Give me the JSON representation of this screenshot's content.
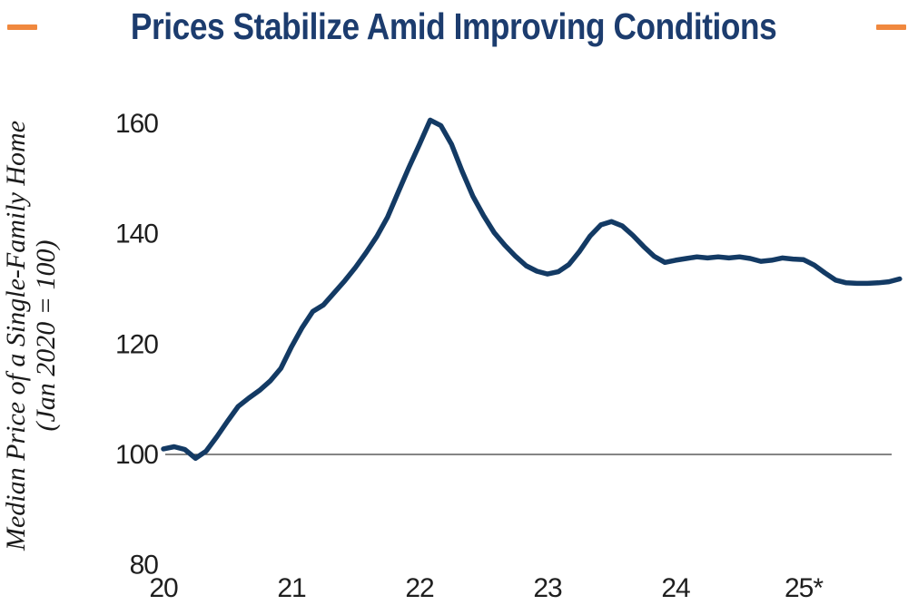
{
  "title": "Prices Stabilize Amid Improving Conditions",
  "colors": {
    "accent_orange": "#F0883E",
    "title_navy": "#1C3C6E",
    "line_navy": "#133A64",
    "tick_text": "#1F1F1F",
    "reference_line": "#3C3C3C"
  },
  "chart_data": {
    "type": "line",
    "title": "Prices Stabilize Amid Improving Conditions",
    "ylabel_line1": "Median Price of a Single-Family Home",
    "ylabel_line2": "(Jan 2020 = 100)",
    "x_unit": "months, index 0 = Jan 2020, monthly data through Oct 2025",
    "x_tick_labels": [
      "20",
      "21",
      "22",
      "23",
      "24",
      "25*"
    ],
    "x_tick_months": [
      0,
      12,
      24,
      36,
      48,
      60
    ],
    "y_ticks": [
      80,
      100,
      120,
      140,
      160
    ],
    "ylim": [
      80,
      165
    ],
    "grid": "off",
    "legend": "none",
    "reference_line_value": 100,
    "series": [
      {
        "name": "Median price of a single-family home (Jan 2020 = 100)",
        "start": "Jan 2020",
        "values": [
          101.0,
          101.4,
          100.9,
          99.3,
          100.6,
          103.2,
          106.0,
          108.7,
          110.2,
          111.6,
          113.3,
          115.6,
          119.5,
          123.0,
          125.9,
          127.1,
          129.3,
          131.5,
          133.9,
          136.6,
          139.5,
          143.0,
          147.5,
          152.0,
          156.2,
          160.6,
          159.6,
          156.2,
          151.3,
          146.8,
          143.3,
          140.2,
          137.9,
          135.9,
          134.2,
          133.2,
          132.7,
          133.1,
          134.4,
          136.8,
          139.6,
          141.6,
          142.2,
          141.4,
          139.7,
          137.7,
          135.9,
          134.8,
          135.2,
          135.5,
          135.8,
          135.6,
          135.8,
          135.6,
          135.8,
          135.5,
          135.0,
          135.2,
          135.6,
          135.4,
          135.3,
          134.3,
          132.9,
          131.6,
          131.1,
          131.0,
          131.0,
          131.1,
          131.3,
          131.8
        ]
      }
    ]
  }
}
